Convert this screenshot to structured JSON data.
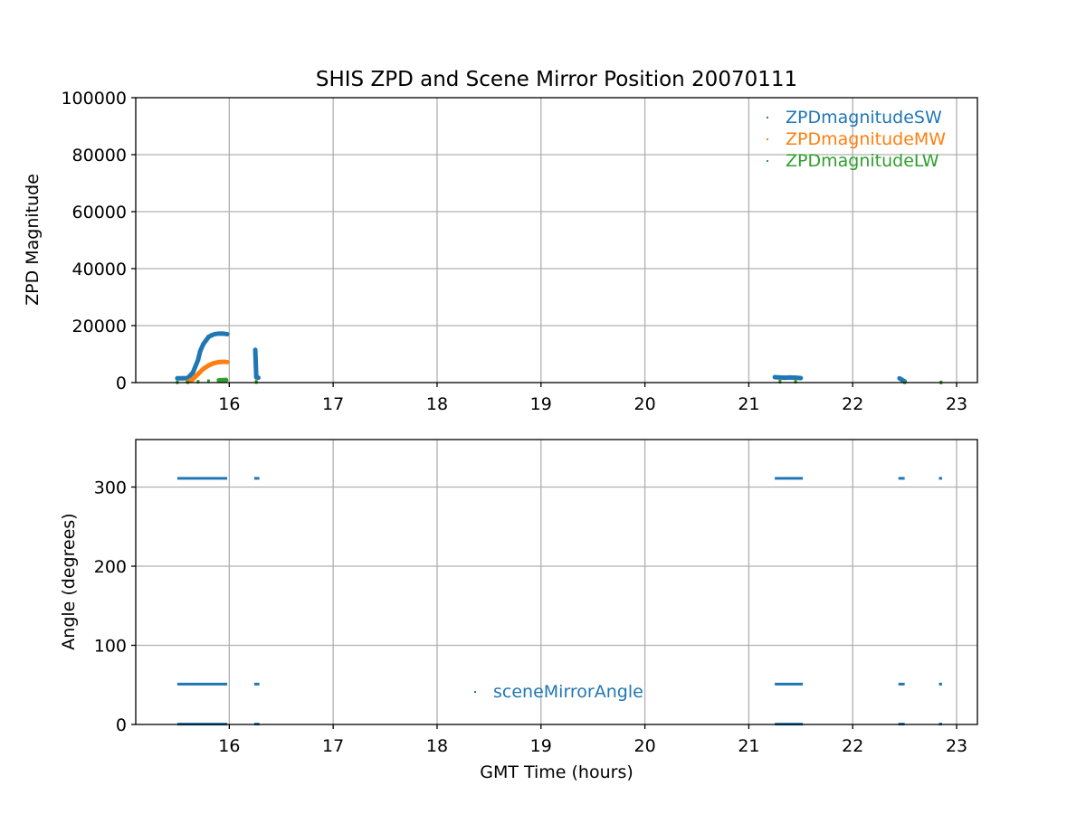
{
  "chart_data": [
    {
      "type": "scatter",
      "title": "SHIS ZPD and Scene Mirror Position 20070111",
      "xlabel": "",
      "ylabel": "ZPD Magnitude",
      "xlim": [
        15.1,
        23.2
      ],
      "ylim": [
        0,
        100000
      ],
      "xticks": [
        16,
        17,
        18,
        19,
        20,
        21,
        22,
        23
      ],
      "yticks": [
        0,
        20000,
        40000,
        60000,
        80000,
        100000
      ],
      "grid": true,
      "legend_placement": "top-right",
      "series": [
        {
          "name": "ZPDmagnitudeSW",
          "color": "#1f77b4",
          "points": [
            [
              15.5,
              1500
            ],
            [
              15.55,
              1500
            ],
            [
              15.6,
              1600
            ],
            [
              15.65,
              3500
            ],
            [
              15.7,
              8000
            ],
            [
              15.72,
              11000
            ],
            [
              15.75,
              13500
            ],
            [
              15.78,
              15000
            ],
            [
              15.8,
              16000
            ],
            [
              15.83,
              16600
            ],
            [
              15.86,
              17000
            ],
            [
              15.9,
              17200
            ],
            [
              15.94,
              17200
            ],
            [
              15.98,
              17000
            ],
            [
              16.25,
              11500
            ],
            [
              16.26,
              1900
            ],
            [
              16.27,
              1800
            ],
            [
              16.28,
              1700
            ],
            [
              21.25,
              1900
            ],
            [
              21.3,
              1800
            ],
            [
              21.35,
              1700
            ],
            [
              21.4,
              1800
            ],
            [
              21.45,
              1700
            ],
            [
              21.5,
              1600
            ],
            [
              22.45,
              1500
            ],
            [
              22.5,
              400
            ]
          ]
        },
        {
          "name": "ZPDmagnitudeMW",
          "color": "#ff7f0e",
          "points": [
            [
              15.6,
              300
            ],
            [
              15.65,
              1200
            ],
            [
              15.7,
              3000
            ],
            [
              15.75,
              4800
            ],
            [
              15.8,
              6000
            ],
            [
              15.85,
              6800
            ],
            [
              15.9,
              7200
            ],
            [
              15.95,
              7300
            ],
            [
              15.98,
              7200
            ],
            [
              16.26,
              400
            ],
            [
              21.3,
              400
            ],
            [
              21.45,
              400
            ]
          ]
        },
        {
          "name": "ZPDmagnitudeLW",
          "color": "#2ca02c",
          "points": [
            [
              15.5,
              100
            ],
            [
              15.6,
              150
            ],
            [
              15.7,
              300
            ],
            [
              15.8,
              500
            ],
            [
              15.9,
              800
            ],
            [
              15.97,
              900
            ],
            [
              16.26,
              200
            ],
            [
              21.3,
              300
            ],
            [
              21.45,
              300
            ],
            [
              22.5,
              100
            ],
            [
              22.85,
              50
            ]
          ]
        }
      ]
    },
    {
      "type": "scatter",
      "title": "",
      "xlabel": "GMT Time (hours)",
      "ylabel": "Angle (degrees)",
      "xlim": [
        15.1,
        23.2
      ],
      "ylim": [
        0,
        360
      ],
      "xticks": [
        16,
        17,
        18,
        19,
        20,
        21,
        22,
        23
      ],
      "yticks": [
        0,
        100,
        200,
        300
      ],
      "grid": true,
      "legend_placement": "bottom-center",
      "series": [
        {
          "name": "sceneMirrorAngle",
          "color": "#1f77b4",
          "segments": [
            {
              "x_start": 15.5,
              "x_end": 15.98,
              "y": 311
            },
            {
              "x_start": 15.5,
              "x_end": 15.98,
              "y": 51
            },
            {
              "x_start": 15.5,
              "x_end": 15.98,
              "y": 0.5
            },
            {
              "x_start": 16.24,
              "x_end": 16.29,
              "y": 311
            },
            {
              "x_start": 16.24,
              "x_end": 16.29,
              "y": 51
            },
            {
              "x_start": 16.24,
              "x_end": 16.29,
              "y": 0.5
            },
            {
              "x_start": 21.25,
              "x_end": 21.52,
              "y": 311
            },
            {
              "x_start": 21.25,
              "x_end": 21.52,
              "y": 51
            },
            {
              "x_start": 21.25,
              "x_end": 21.52,
              "y": 0.5
            },
            {
              "x_start": 22.44,
              "x_end": 22.5,
              "y": 311
            },
            {
              "x_start": 22.44,
              "x_end": 22.5,
              "y": 51
            },
            {
              "x_start": 22.44,
              "x_end": 22.5,
              "y": 0.5
            },
            {
              "x_start": 22.83,
              "x_end": 22.86,
              "y": 311
            },
            {
              "x_start": 22.83,
              "x_end": 22.86,
              "y": 51
            },
            {
              "x_start": 22.83,
              "x_end": 22.86,
              "y": 0.5
            }
          ]
        }
      ]
    }
  ]
}
